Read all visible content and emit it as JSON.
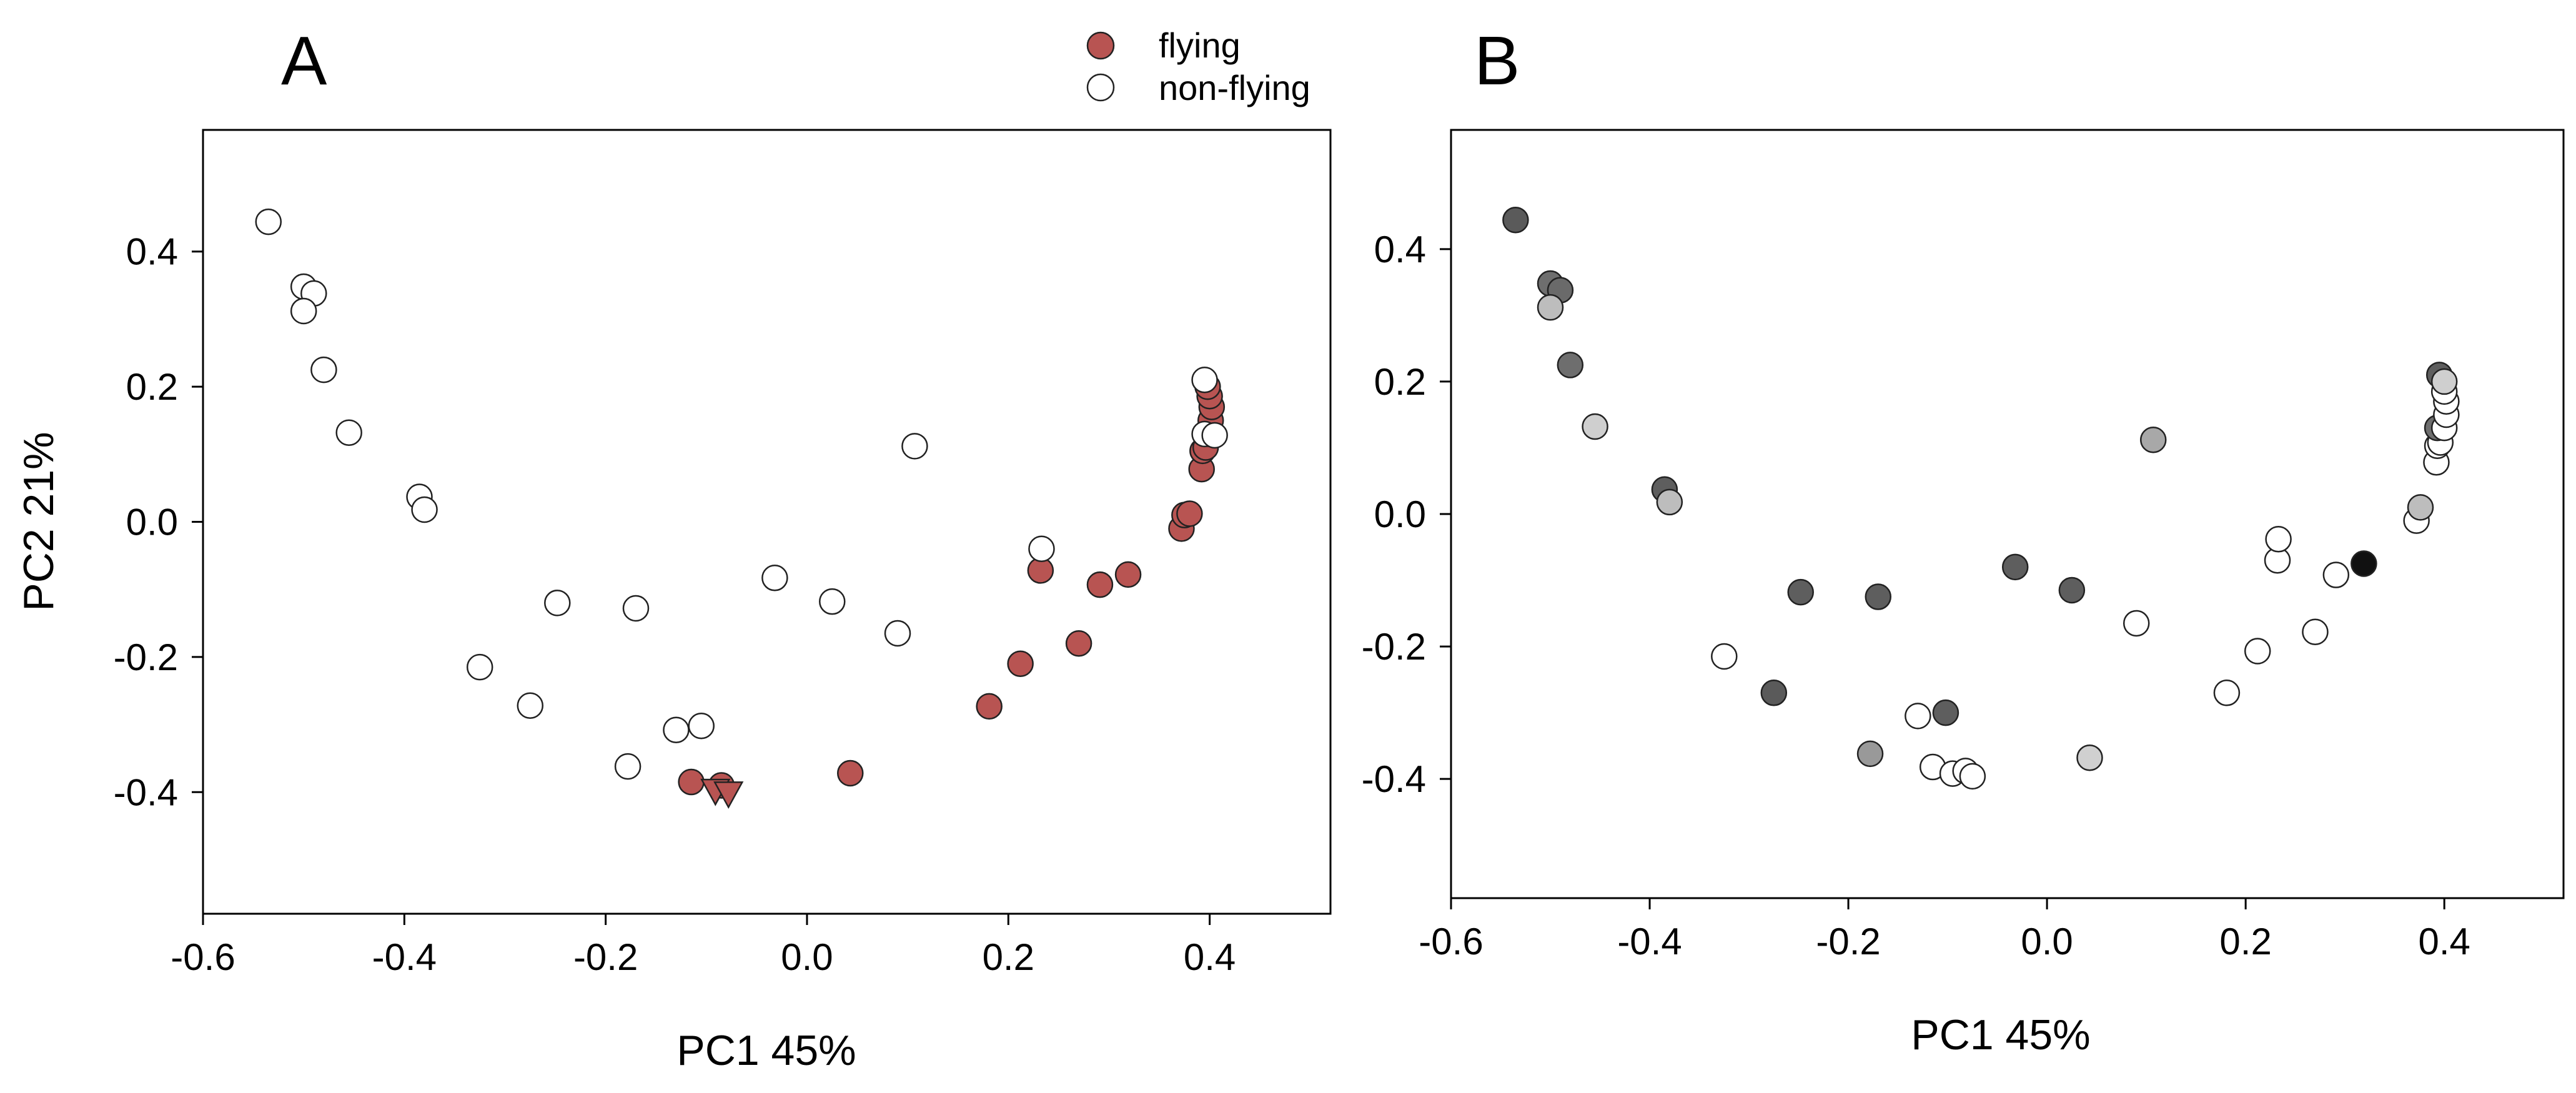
{
  "colors": {
    "flying": "#b85452",
    "flying_dark": "#8b1a1a",
    "non_flying": "#ffffff",
    "stroke": "#222222",
    "frame": "#000000"
  },
  "legend": [
    {
      "label": "flying",
      "color": "#b85452"
    },
    {
      "label": "non-flying",
      "color": "#ffffff"
    }
  ],
  "chart_data": [
    {
      "panel": "A",
      "type": "scatter",
      "xlabel": "PC1  45%",
      "ylabel": "PC2  21%",
      "xlim": [
        -0.6,
        0.52
      ],
      "ylim": [
        -0.58,
        0.58
      ],
      "xticks": [
        -0.6,
        -0.4,
        -0.2,
        0.0,
        0.2,
        0.4
      ],
      "xtick_labels": [
        "-0.6",
        "-0.4",
        "-0.2",
        "0.0",
        "0.2",
        "0.4"
      ],
      "yticks": [
        0.4,
        0.2,
        0.0,
        -0.2,
        -0.4
      ],
      "ytick_labels": [
        "0.4",
        "0.2",
        "0.0",
        "-0.2",
        "-0.4"
      ],
      "legend_position": "top-right",
      "series": [
        {
          "name": "flying",
          "marker": "circle",
          "points": [
            [
              -0.115,
              -0.385
            ],
            [
              -0.085,
              -0.39
            ],
            [
              0.043,
              -0.372
            ],
            [
              0.181,
              -0.273
            ],
            [
              0.212,
              -0.21
            ],
            [
              0.232,
              -0.072
            ],
            [
              0.27,
              -0.18
            ],
            [
              0.291,
              -0.093
            ],
            [
              0.319,
              -0.078
            ],
            [
              0.372,
              -0.01
            ],
            [
              0.375,
              0.01
            ],
            [
              0.38,
              0.012
            ],
            [
              0.392,
              0.078
            ],
            [
              0.393,
              0.105
            ],
            [
              0.396,
              0.11
            ],
            [
              0.4,
              0.13
            ],
            [
              0.401,
              0.15
            ],
            [
              0.402,
              0.17
            ],
            [
              0.4,
              0.186
            ],
            [
              0.398,
              0.2
            ]
          ]
        },
        {
          "name": "flying (triangle markers)",
          "marker": "triangle",
          "points": [
            [
              -0.091,
              -0.398
            ],
            [
              -0.078,
              -0.402
            ]
          ]
        },
        {
          "name": "non-flying",
          "marker": "circle",
          "points": [
            [
              -0.535,
              0.444
            ],
            [
              -0.5,
              0.348
            ],
            [
              -0.49,
              0.338
            ],
            [
              -0.5,
              0.312
            ],
            [
              -0.48,
              0.225
            ],
            [
              -0.455,
              0.132
            ],
            [
              -0.385,
              0.037
            ],
            [
              -0.38,
              0.018
            ],
            [
              -0.325,
              -0.215
            ],
            [
              -0.275,
              -0.272
            ],
            [
              -0.248,
              -0.12
            ],
            [
              -0.178,
              -0.362
            ],
            [
              -0.17,
              -0.128
            ],
            [
              -0.13,
              -0.308
            ],
            [
              -0.105,
              -0.302
            ],
            [
              -0.032,
              -0.083
            ],
            [
              0.025,
              -0.118
            ],
            [
              0.09,
              -0.165
            ],
            [
              0.107,
              0.112
            ],
            [
              0.233,
              -0.04
            ],
            [
              0.395,
              0.21
            ],
            [
              0.395,
              0.13
            ],
            [
              0.405,
              0.128
            ]
          ]
        }
      ]
    },
    {
      "panel": "B",
      "type": "scatter",
      "xlabel": "PC1  45%",
      "ylabel": "",
      "xlim": [
        -0.6,
        0.52
      ],
      "ylim": [
        -0.58,
        0.58
      ],
      "xticks": [
        -0.6,
        -0.4,
        -0.2,
        0.0,
        0.2,
        0.4
      ],
      "xtick_labels": [
        "-0.6",
        "-0.4",
        "-0.2",
        "0.0",
        "0.2",
        "0.4"
      ],
      "yticks": [
        0.4,
        0.2,
        0.0,
        -0.2,
        -0.4
      ],
      "ytick_labels": [
        "0.4",
        "0.2",
        "0.0",
        "-0.2",
        "-0.4"
      ],
      "fill_scale": "grayscale (black to white)",
      "points": [
        {
          "x": -0.535,
          "y": 0.444,
          "fill": "#5a5a5a"
        },
        {
          "x": -0.5,
          "y": 0.348,
          "fill": "#6e6e6e"
        },
        {
          "x": -0.49,
          "y": 0.338,
          "fill": "#6a6a6a"
        },
        {
          "x": -0.5,
          "y": 0.312,
          "fill": "#bdbdbd"
        },
        {
          "x": -0.48,
          "y": 0.225,
          "fill": "#6e6e6e"
        },
        {
          "x": -0.455,
          "y": 0.132,
          "fill": "#cfcfcf"
        },
        {
          "x": -0.385,
          "y": 0.037,
          "fill": "#5e5e5e"
        },
        {
          "x": -0.38,
          "y": 0.018,
          "fill": "#bdbdbd"
        },
        {
          "x": -0.325,
          "y": -0.215,
          "fill": "#ffffff"
        },
        {
          "x": -0.275,
          "y": -0.27,
          "fill": "#5a5a5a"
        },
        {
          "x": -0.248,
          "y": -0.118,
          "fill": "#5e5e5e"
        },
        {
          "x": -0.178,
          "y": -0.362,
          "fill": "#999999"
        },
        {
          "x": -0.17,
          "y": -0.125,
          "fill": "#5e5e5e"
        },
        {
          "x": -0.13,
          "y": -0.305,
          "fill": "#ffffff"
        },
        {
          "x": -0.102,
          "y": -0.3,
          "fill": "#5e5e5e"
        },
        {
          "x": -0.115,
          "y": -0.382,
          "fill": "#ffffff"
        },
        {
          "x": -0.095,
          "y": -0.392,
          "fill": "#ffffff"
        },
        {
          "x": -0.082,
          "y": -0.388,
          "fill": "#ffffff"
        },
        {
          "x": -0.075,
          "y": -0.396,
          "fill": "#ffffff"
        },
        {
          "x": -0.032,
          "y": -0.08,
          "fill": "#5e5e5e"
        },
        {
          "x": 0.025,
          "y": -0.115,
          "fill": "#5e5e5e"
        },
        {
          "x": 0.043,
          "y": -0.368,
          "fill": "#d0d0d0"
        },
        {
          "x": 0.09,
          "y": -0.165,
          "fill": "#ffffff"
        },
        {
          "x": 0.107,
          "y": 0.112,
          "fill": "#a8a8a8"
        },
        {
          "x": 0.181,
          "y": -0.27,
          "fill": "#ffffff"
        },
        {
          "x": 0.212,
          "y": -0.207,
          "fill": "#ffffff"
        },
        {
          "x": 0.232,
          "y": -0.07,
          "fill": "#ffffff"
        },
        {
          "x": 0.233,
          "y": -0.038,
          "fill": "#ffffff"
        },
        {
          "x": 0.27,
          "y": -0.178,
          "fill": "#ffffff"
        },
        {
          "x": 0.291,
          "y": -0.092,
          "fill": "#ffffff"
        },
        {
          "x": 0.319,
          "y": -0.075,
          "fill": "#111111"
        },
        {
          "x": 0.372,
          "y": -0.01,
          "fill": "#ffffff"
        },
        {
          "x": 0.376,
          "y": 0.01,
          "fill": "#bdbdbd"
        },
        {
          "x": 0.392,
          "y": 0.078,
          "fill": "#ffffff"
        },
        {
          "x": 0.393,
          "y": 0.103,
          "fill": "#ffffff"
        },
        {
          "x": 0.396,
          "y": 0.108,
          "fill": "#ffffff"
        },
        {
          "x": 0.393,
          "y": 0.13,
          "fill": "#6e6e6e"
        },
        {
          "x": 0.4,
          "y": 0.13,
          "fill": "#ffffff"
        },
        {
          "x": 0.402,
          "y": 0.15,
          "fill": "#ffffff"
        },
        {
          "x": 0.402,
          "y": 0.17,
          "fill": "#ffffff"
        },
        {
          "x": 0.4,
          "y": 0.185,
          "fill": "#ffffff"
        },
        {
          "x": 0.395,
          "y": 0.21,
          "fill": "#5e5e5e"
        },
        {
          "x": 0.4,
          "y": 0.2,
          "fill": "#cfcfcf"
        }
      ]
    }
  ]
}
